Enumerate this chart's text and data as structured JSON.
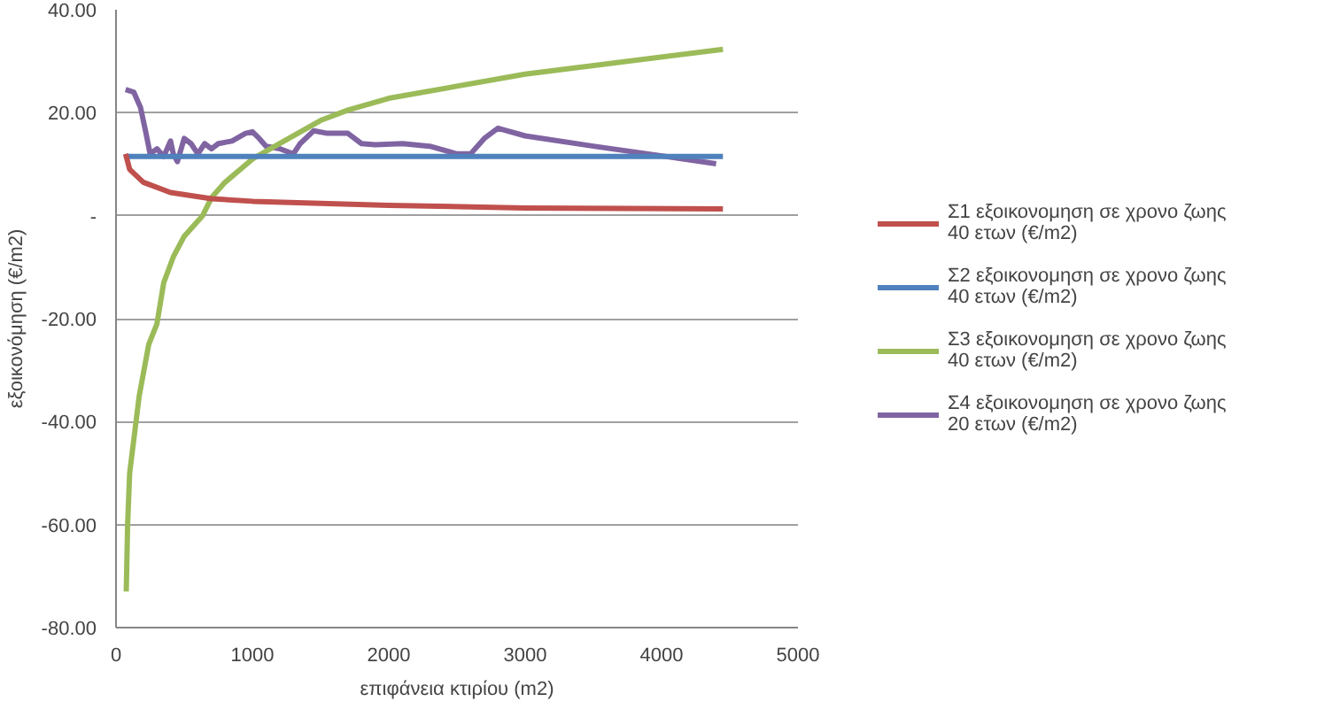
{
  "chart_data": {
    "type": "line",
    "xlabel": "επιφάνεια κτιρίου (m2)",
    "ylabel": "εξοικονόμηση (€/m2)",
    "xlim": [
      0,
      5000
    ],
    "xticks": [
      0,
      1000,
      2000,
      3000,
      4000,
      5000
    ],
    "ylim": [
      -80,
      40
    ],
    "yticks": [
      {
        "value": -80,
        "label": "-80.00"
      },
      {
        "value": -60,
        "label": "-60.00"
      },
      {
        "value": -40,
        "label": "-40.00"
      },
      {
        "value": -20,
        "label": "-20.00"
      },
      {
        "value": 0,
        "label": "-"
      },
      {
        "value": 20,
        "label": "20.00"
      },
      {
        "value": 40,
        "label": "40.00"
      }
    ],
    "grid": "y",
    "legend": "right",
    "line_style": "solid",
    "marker": "none",
    "series": [
      {
        "name": "Σ1 εξοικονομηση σε χρονο ζωης 40 ετων (€/m2)",
        "color": "#c0504d",
        "x": [
          70,
          100,
          200,
          400,
          700,
          1000,
          2000,
          3000,
          4450
        ],
        "values": [
          12,
          9,
          6.5,
          4.5,
          3.3,
          2.8,
          2,
          1.5,
          1.3
        ]
      },
      {
        "name": "Σ2 εξοικονομηση σε χρονο ζωης 40 ετων (€/m2)",
        "color": "#4f81bd",
        "x": [
          70,
          4450
        ],
        "values": [
          11.5,
          11.5
        ]
      },
      {
        "name": "Σ3 εξοικονομηση σε χρονο ζωης 40 ετων (€/m2)",
        "color": "#9bbb59",
        "x": [
          75,
          85,
          100,
          170,
          240,
          300,
          350,
          420,
          500,
          635,
          700,
          800,
          1000,
          1200,
          1500,
          1700,
          2000,
          3000,
          4450
        ],
        "values": [
          -73,
          -60,
          -50,
          -35,
          -25,
          -21,
          -13,
          -8,
          -4,
          0,
          3.5,
          6.5,
          11,
          14,
          18.5,
          20.5,
          22.8,
          27.5,
          32.3
        ]
      },
      {
        "name": "Σ4 εξοικονομηση σε χρονο ζωης 20 ετων (€/m2)",
        "color": "#8064a2",
        "x": [
          70,
          130,
          180,
          220,
          250,
          300,
          350,
          400,
          420,
          450,
          500,
          550,
          600,
          650,
          700,
          750,
          850,
          950,
          1000,
          1050,
          1100,
          1200,
          1300,
          1350,
          1450,
          1550,
          1700,
          1800,
          1900,
          2100,
          2300,
          2500,
          2600,
          2700,
          2800,
          3000,
          3500,
          4400
        ],
        "values": [
          24.5,
          24,
          21,
          16,
          12,
          13,
          11.5,
          14.5,
          12,
          10.5,
          15,
          14,
          12,
          14,
          13,
          14,
          14.5,
          16,
          16.3,
          15,
          13.5,
          13,
          12,
          14,
          16.5,
          16,
          16,
          14,
          13.8,
          14,
          13.5,
          12,
          12,
          15,
          17,
          15.5,
          13.5,
          10.1
        ]
      }
    ]
  }
}
